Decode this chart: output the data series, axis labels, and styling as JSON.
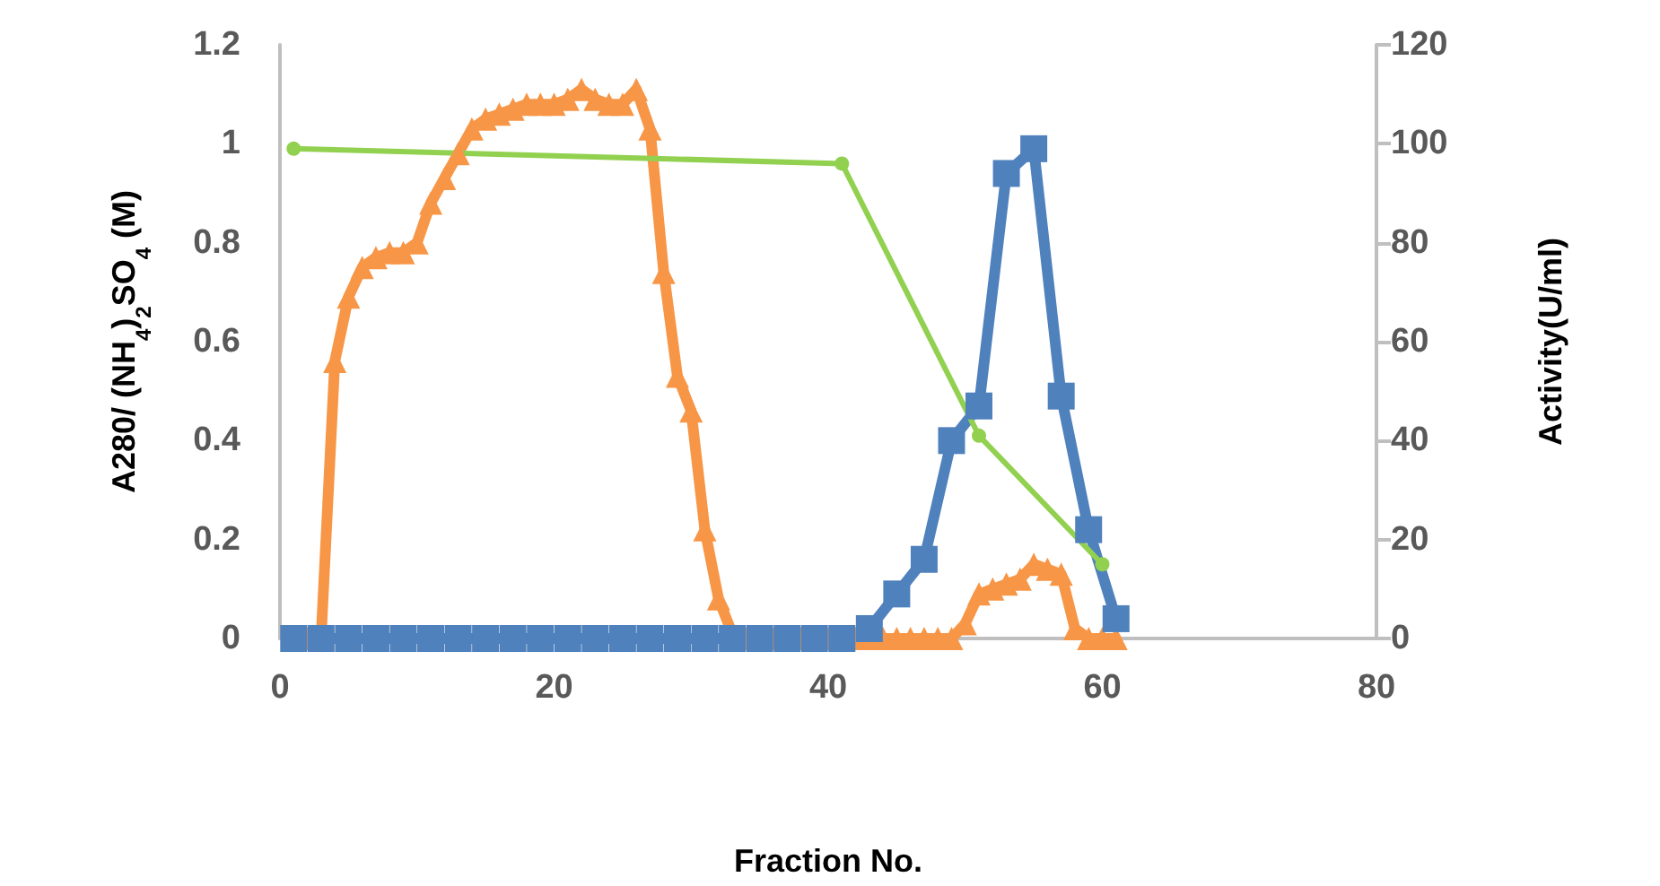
{
  "chart_data": {
    "type": "line",
    "xlabel": "Fraction No.",
    "ylabel": "A280/ (NH$_{4}$)$_{2}$SO$_{4}$ (M)",
    "y2label": "Activity(U/ml)",
    "xlim": [
      0,
      80
    ],
    "xticks": [
      0,
      20,
      40,
      60,
      80
    ],
    "ylim": [
      0,
      1.2
    ],
    "yticks": [
      0,
      0.2,
      0.4,
      0.6,
      0.8,
      1,
      1.2
    ],
    "y2lim": [
      0,
      120
    ],
    "y2ticks": [
      0,
      20,
      40,
      60,
      80,
      100,
      120
    ],
    "line_style": "solid",
    "series": [
      {
        "color": "#f79646",
        "marker": "triangle",
        "x": [
          1,
          2,
          3,
          4,
          5,
          6,
          7,
          8,
          9,
          10,
          11,
          12,
          13,
          14,
          15,
          16,
          17,
          18,
          19,
          20,
          21,
          22,
          23,
          24,
          25,
          26,
          27,
          28,
          29,
          30,
          31,
          32,
          33,
          34,
          35,
          36,
          37,
          38,
          39,
          40,
          41,
          42,
          43,
          44,
          45,
          46,
          47,
          48,
          49,
          50,
          51,
          52,
          53,
          54,
          55,
          56,
          57,
          58,
          59,
          60,
          61
        ],
        "values": [
          0,
          0,
          0,
          0.56,
          0.69,
          0.75,
          0.77,
          0.78,
          0.78,
          0.8,
          0.88,
          0.93,
          0.98,
          1.03,
          1.05,
          1.06,
          1.07,
          1.08,
          1.08,
          1.08,
          1.09,
          1.11,
          1.09,
          1.08,
          1.08,
          1.11,
          1.03,
          0.74,
          0.53,
          0.46,
          0.22,
          0.08,
          0.01,
          0,
          0,
          0,
          0,
          0,
          0,
          0,
          0,
          0,
          0,
          0,
          0,
          0,
          0,
          0,
          0,
          0.03,
          0.09,
          0.1,
          0.11,
          0.12,
          0.15,
          0.14,
          0.13,
          0.02,
          0,
          0,
          0
        ]
      },
      {
        "color": "#4f81bd",
        "marker": "square",
        "axis": "y2",
        "x": [
          1,
          3,
          5,
          7,
          9,
          11,
          13,
          15,
          17,
          19,
          21,
          23,
          25,
          27,
          29,
          31,
          33,
          35,
          37,
          39,
          41,
          43,
          45,
          47,
          49,
          51,
          53,
          55,
          57,
          59,
          61
        ],
        "values": [
          0,
          0,
          0,
          0,
          0,
          0,
          0,
          0,
          0,
          0,
          0,
          0,
          0,
          0,
          0,
          0,
          0,
          0,
          0,
          0,
          0,
          2,
          9,
          16,
          40,
          47,
          94,
          99,
          49,
          22,
          4
        ]
      },
      {
        "color": "#92d050",
        "marker": "circle",
        "x": [
          1,
          41,
          51,
          60
        ],
        "values": [
          0.99,
          0.96,
          0.41,
          0.15
        ]
      }
    ]
  }
}
